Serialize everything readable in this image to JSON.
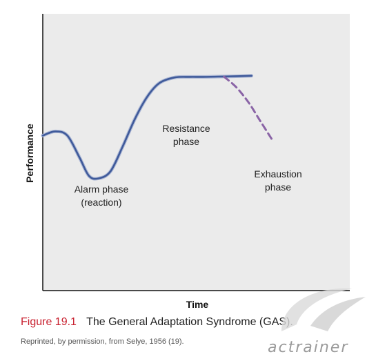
{
  "chart_data": {
    "type": "line",
    "title": "",
    "xlabel": "Time",
    "ylabel": "Performance",
    "xlim": [
      0,
      10
    ],
    "ylim": [
      0,
      10
    ],
    "grid": false,
    "series": [
      {
        "name": "",
        "style": "solid",
        "color": "#3f5a9a",
        "x": [
          0.0,
          0.4,
          0.8,
          1.2,
          1.5,
          1.8,
          2.2,
          2.6,
          3.0,
          3.4,
          3.8,
          4.3,
          4.8,
          5.2,
          5.7,
          6.2,
          6.8
        ],
        "y": [
          5.6,
          5.75,
          5.6,
          4.8,
          4.15,
          4.05,
          4.3,
          5.2,
          6.2,
          7.0,
          7.5,
          7.7,
          7.72,
          7.72,
          7.73,
          7.74,
          7.76
        ]
      },
      {
        "name": "",
        "style": "dashed",
        "color": "#8a64a6",
        "x": [
          5.9,
          6.3,
          6.7,
          7.1,
          7.5
        ],
        "y": [
          7.73,
          7.35,
          6.8,
          6.1,
          5.4
        ]
      }
    ],
    "annotations": [
      {
        "lines": [
          "Alarm phase",
          "(reaction)"
        ]
      },
      {
        "lines": [
          "Resistance",
          "phase"
        ]
      },
      {
        "lines": [
          "Exhaustion",
          "phase"
        ]
      }
    ]
  },
  "caption": {
    "figure_number": "Figure 19.1",
    "text": "The General Adaptation Syndrome (GAS)."
  },
  "credit": "Reprinted, by permission, from Selye, 1956 (19).",
  "watermark": "actrainer"
}
